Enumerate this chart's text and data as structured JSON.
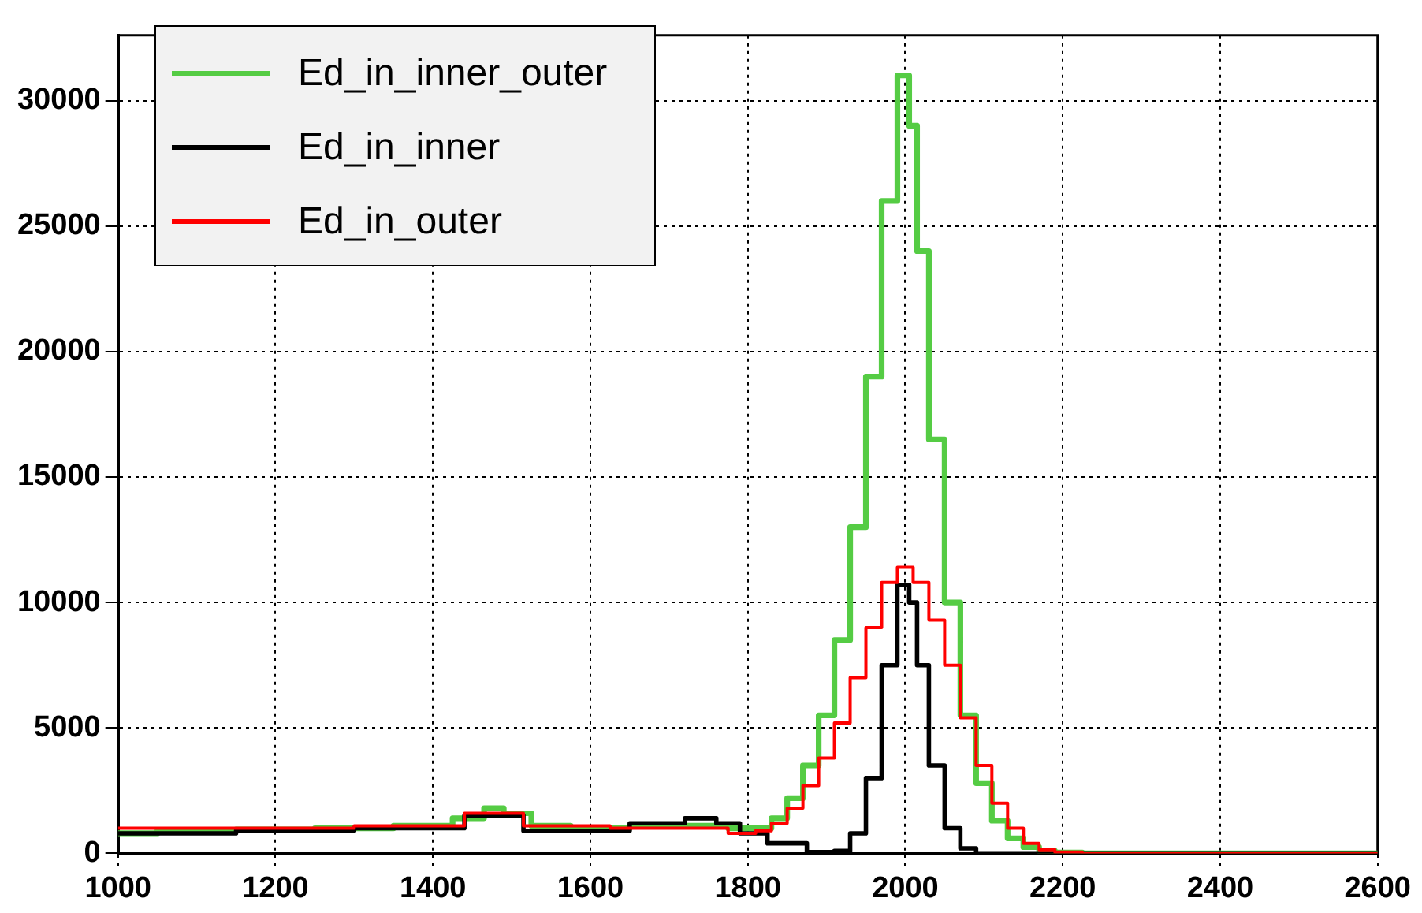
{
  "chart_data": {
    "type": "step",
    "xlim": [
      1000,
      2600
    ],
    "ylim": [
      0,
      32600
    ],
    "xticks": [
      1000,
      1200,
      1400,
      1600,
      1800,
      2000,
      2200,
      2400,
      2600
    ],
    "yticks": [
      0,
      5000,
      10000,
      15000,
      20000,
      25000,
      30000
    ],
    "grid": true,
    "legend": "top left",
    "line_style": "solid",
    "marker": "none",
    "series": [
      {
        "name": "Ed_in_inner_outer",
        "color": "#55cc44",
        "x": [
          1000,
          1100,
          1200,
          1300,
          1400,
          1450,
          1480,
          1500,
          1550,
          1600,
          1700,
          1750,
          1800,
          1820,
          1840,
          1860,
          1880,
          1900,
          1920,
          1940,
          1960,
          1980,
          2000,
          2010,
          2020,
          2040,
          2060,
          2080,
          2100,
          2120,
          2140,
          2160,
          2180,
          2200,
          2250,
          2600
        ],
        "values": [
          800,
          900,
          950,
          1000,
          1100,
          1400,
          1800,
          1600,
          1100,
          1000,
          1100,
          1100,
          1000,
          1000,
          1400,
          2200,
          3500,
          5500,
          8500,
          13000,
          19000,
          26000,
          31000,
          29000,
          24000,
          16500,
          10000,
          5500,
          2800,
          1300,
          600,
          250,
          100,
          30,
          0,
          0
        ]
      },
      {
        "name": "Ed_in_inner",
        "color": "#000000",
        "x": [
          1000,
          1100,
          1200,
          1400,
          1480,
          1550,
          1600,
          1700,
          1740,
          1780,
          1800,
          1850,
          1900,
          1920,
          1940,
          1960,
          1980,
          2000,
          2010,
          2020,
          2040,
          2060,
          2080,
          2100,
          2600
        ],
        "values": [
          800,
          800,
          900,
          1000,
          1500,
          900,
          900,
          1200,
          1400,
          1200,
          800,
          400,
          50,
          100,
          800,
          3000,
          7500,
          10700,
          10000,
          7500,
          3500,
          1000,
          200,
          0,
          0
        ]
      },
      {
        "name": "Ed_in_outer",
        "color": "#ff0000",
        "x": [
          1000,
          1200,
          1400,
          1480,
          1550,
          1700,
          1750,
          1800,
          1820,
          1840,
          1860,
          1880,
          1900,
          1920,
          1940,
          1960,
          1980,
          2000,
          2020,
          2040,
          2060,
          2080,
          2100,
          2120,
          2140,
          2160,
          2180,
          2200,
          2250,
          2600
        ],
        "values": [
          1000,
          1000,
          1100,
          1600,
          1100,
          1000,
          1000,
          800,
          900,
          1200,
          1800,
          2700,
          3800,
          5200,
          7000,
          9000,
          10800,
          11400,
          10800,
          9300,
          7500,
          5400,
          3500,
          2000,
          1000,
          400,
          150,
          50,
          0,
          0
        ]
      }
    ]
  }
}
